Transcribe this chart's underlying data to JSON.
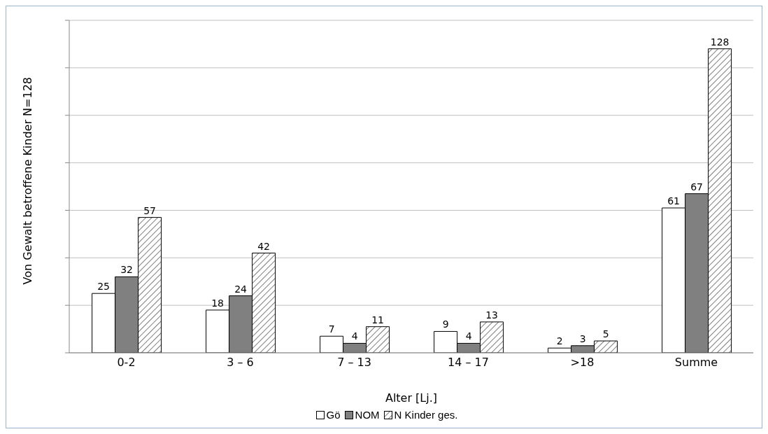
{
  "chart_data": {
    "type": "bar",
    "xlabel": "Alter [Lj.]",
    "ylabel": "Von Gewalt betroffene Kinder N=128",
    "categories": [
      "0-2",
      "3 – 6",
      "7 – 13",
      "14 – 17",
      ">18",
      "Summe"
    ],
    "series": [
      {
        "name": "Gö",
        "color": "#ffffff",
        "values": [
          25,
          18,
          7,
          9,
          2,
          61
        ]
      },
      {
        "name": "NOM",
        "color": "#808080",
        "values": [
          32,
          24,
          4,
          4,
          3,
          67
        ]
      },
      {
        "name": "N Kinder ges.",
        "color": "#000000",
        "values": [
          57,
          42,
          11,
          13,
          5,
          128
        ]
      }
    ],
    "ylim": [
      0,
      140
    ],
    "yticks": [
      {
        "value": 0,
        "label": null
      },
      {
        "value": 20,
        "label": null
      },
      {
        "value": 40,
        "label": null
      },
      {
        "value": 60,
        "label": null
      },
      {
        "value": 80,
        "label": null
      },
      {
        "value": 100,
        "label": null
      },
      {
        "value": 120,
        "label": null
      },
      {
        "value": 140,
        "label": null
      }
    ],
    "tick_labels": "x",
    "grid": "y",
    "data_labels": true,
    "legend": "bottom"
  }
}
